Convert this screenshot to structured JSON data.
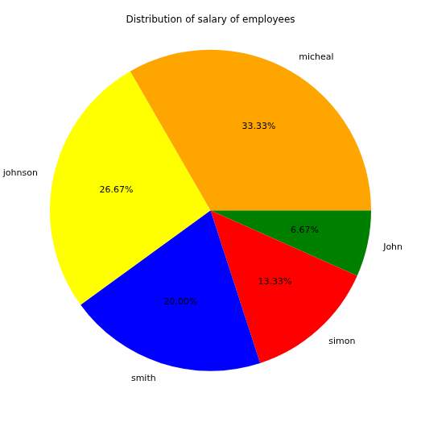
{
  "chart_data": {
    "type": "pie",
    "title": "Distribution of salary of employees",
    "categories": [
      "John",
      "simon",
      "smith",
      "johnson",
      "micheal"
    ],
    "values": [
      6.67,
      13.33,
      20.0,
      26.67,
      33.33
    ],
    "value_labels": [
      "6.67%",
      "13.33%",
      "20.00%",
      "26.67%",
      "33.33%"
    ],
    "colors": [
      "#008000",
      "#ff0000",
      "#0000ff",
      "#ffff00",
      "#ffa500"
    ],
    "data_labels": true
  }
}
